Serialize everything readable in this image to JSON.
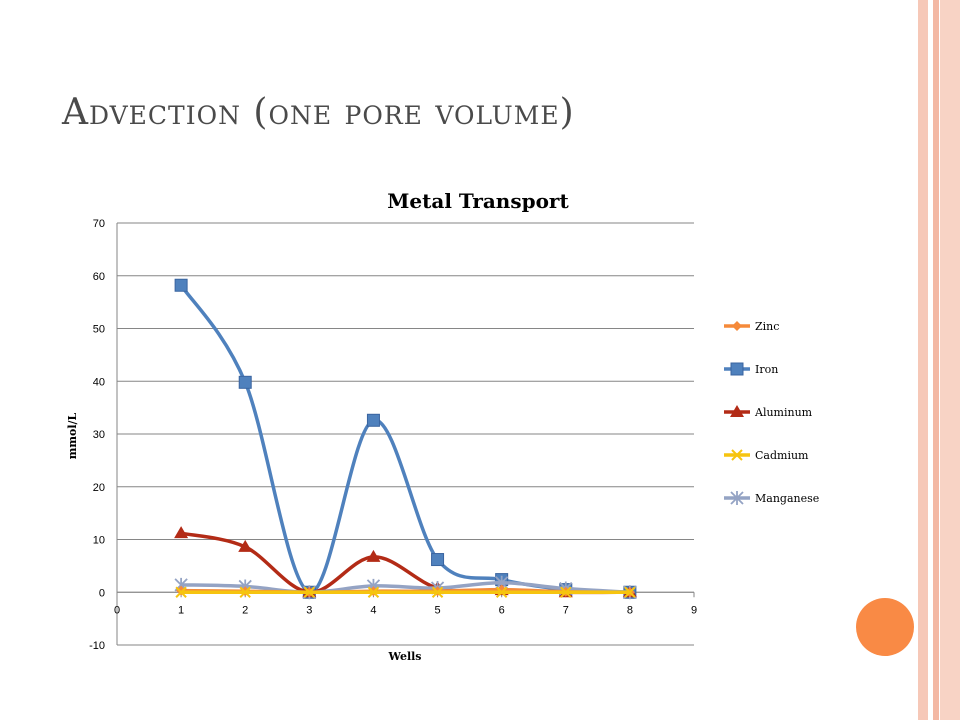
{
  "slide": {
    "title": "Advection (one pore volume)"
  },
  "colors": {
    "background": "#ffffff",
    "gridline": "#868686",
    "accent_circle": "#f98a45",
    "band": "#f6c8b8"
  },
  "chart_data": {
    "type": "line",
    "title": "Metal Transport",
    "xlabel": "Wells",
    "ylabel": "mmol/L",
    "xlim": [
      0,
      9
    ],
    "ylim": [
      -10,
      70
    ],
    "x_ticks": [
      0,
      1,
      2,
      3,
      4,
      5,
      6,
      7,
      8,
      9
    ],
    "y_ticks": [
      -10,
      0,
      10,
      20,
      30,
      40,
      50,
      60,
      70
    ],
    "grid": "horizontal",
    "legend_position": "right",
    "series": [
      {
        "name": "Zinc",
        "color": "#f58a3a",
        "marker": "diamond",
        "x": [
          1,
          2,
          3,
          4,
          5,
          6,
          7,
          8
        ],
        "y": [
          0.3,
          0.2,
          0,
          0.2,
          0.2,
          0.5,
          0.1,
          0
        ]
      },
      {
        "name": "Iron",
        "color": "#4f81bd",
        "marker": "square",
        "x": [
          1,
          2,
          3,
          4,
          5,
          6,
          7,
          8
        ],
        "y": [
          58.2,
          39.8,
          0,
          32.6,
          6.2,
          2.4,
          0.5,
          0
        ]
      },
      {
        "name": "Aluminum",
        "color": "#b32b16",
        "marker": "triangle",
        "x": [
          1,
          2,
          3,
          4,
          5,
          6,
          7,
          8
        ],
        "y": [
          11.2,
          8.6,
          0,
          6.7,
          0.8,
          0.4,
          0,
          0
        ]
      },
      {
        "name": "Cadmium",
        "color": "#f6c40f",
        "marker": "x",
        "x": [
          1,
          2,
          3,
          4,
          5,
          6,
          7,
          8
        ],
        "y": [
          0,
          0,
          0,
          0,
          0,
          0,
          0,
          0
        ]
      },
      {
        "name": "Manganese",
        "color": "#94a3c4",
        "marker": "star",
        "x": [
          1,
          2,
          3,
          4,
          5,
          6,
          7,
          8
        ],
        "y": [
          1.4,
          1.1,
          0,
          1.2,
          0.8,
          1.8,
          0.7,
          0
        ]
      }
    ]
  }
}
